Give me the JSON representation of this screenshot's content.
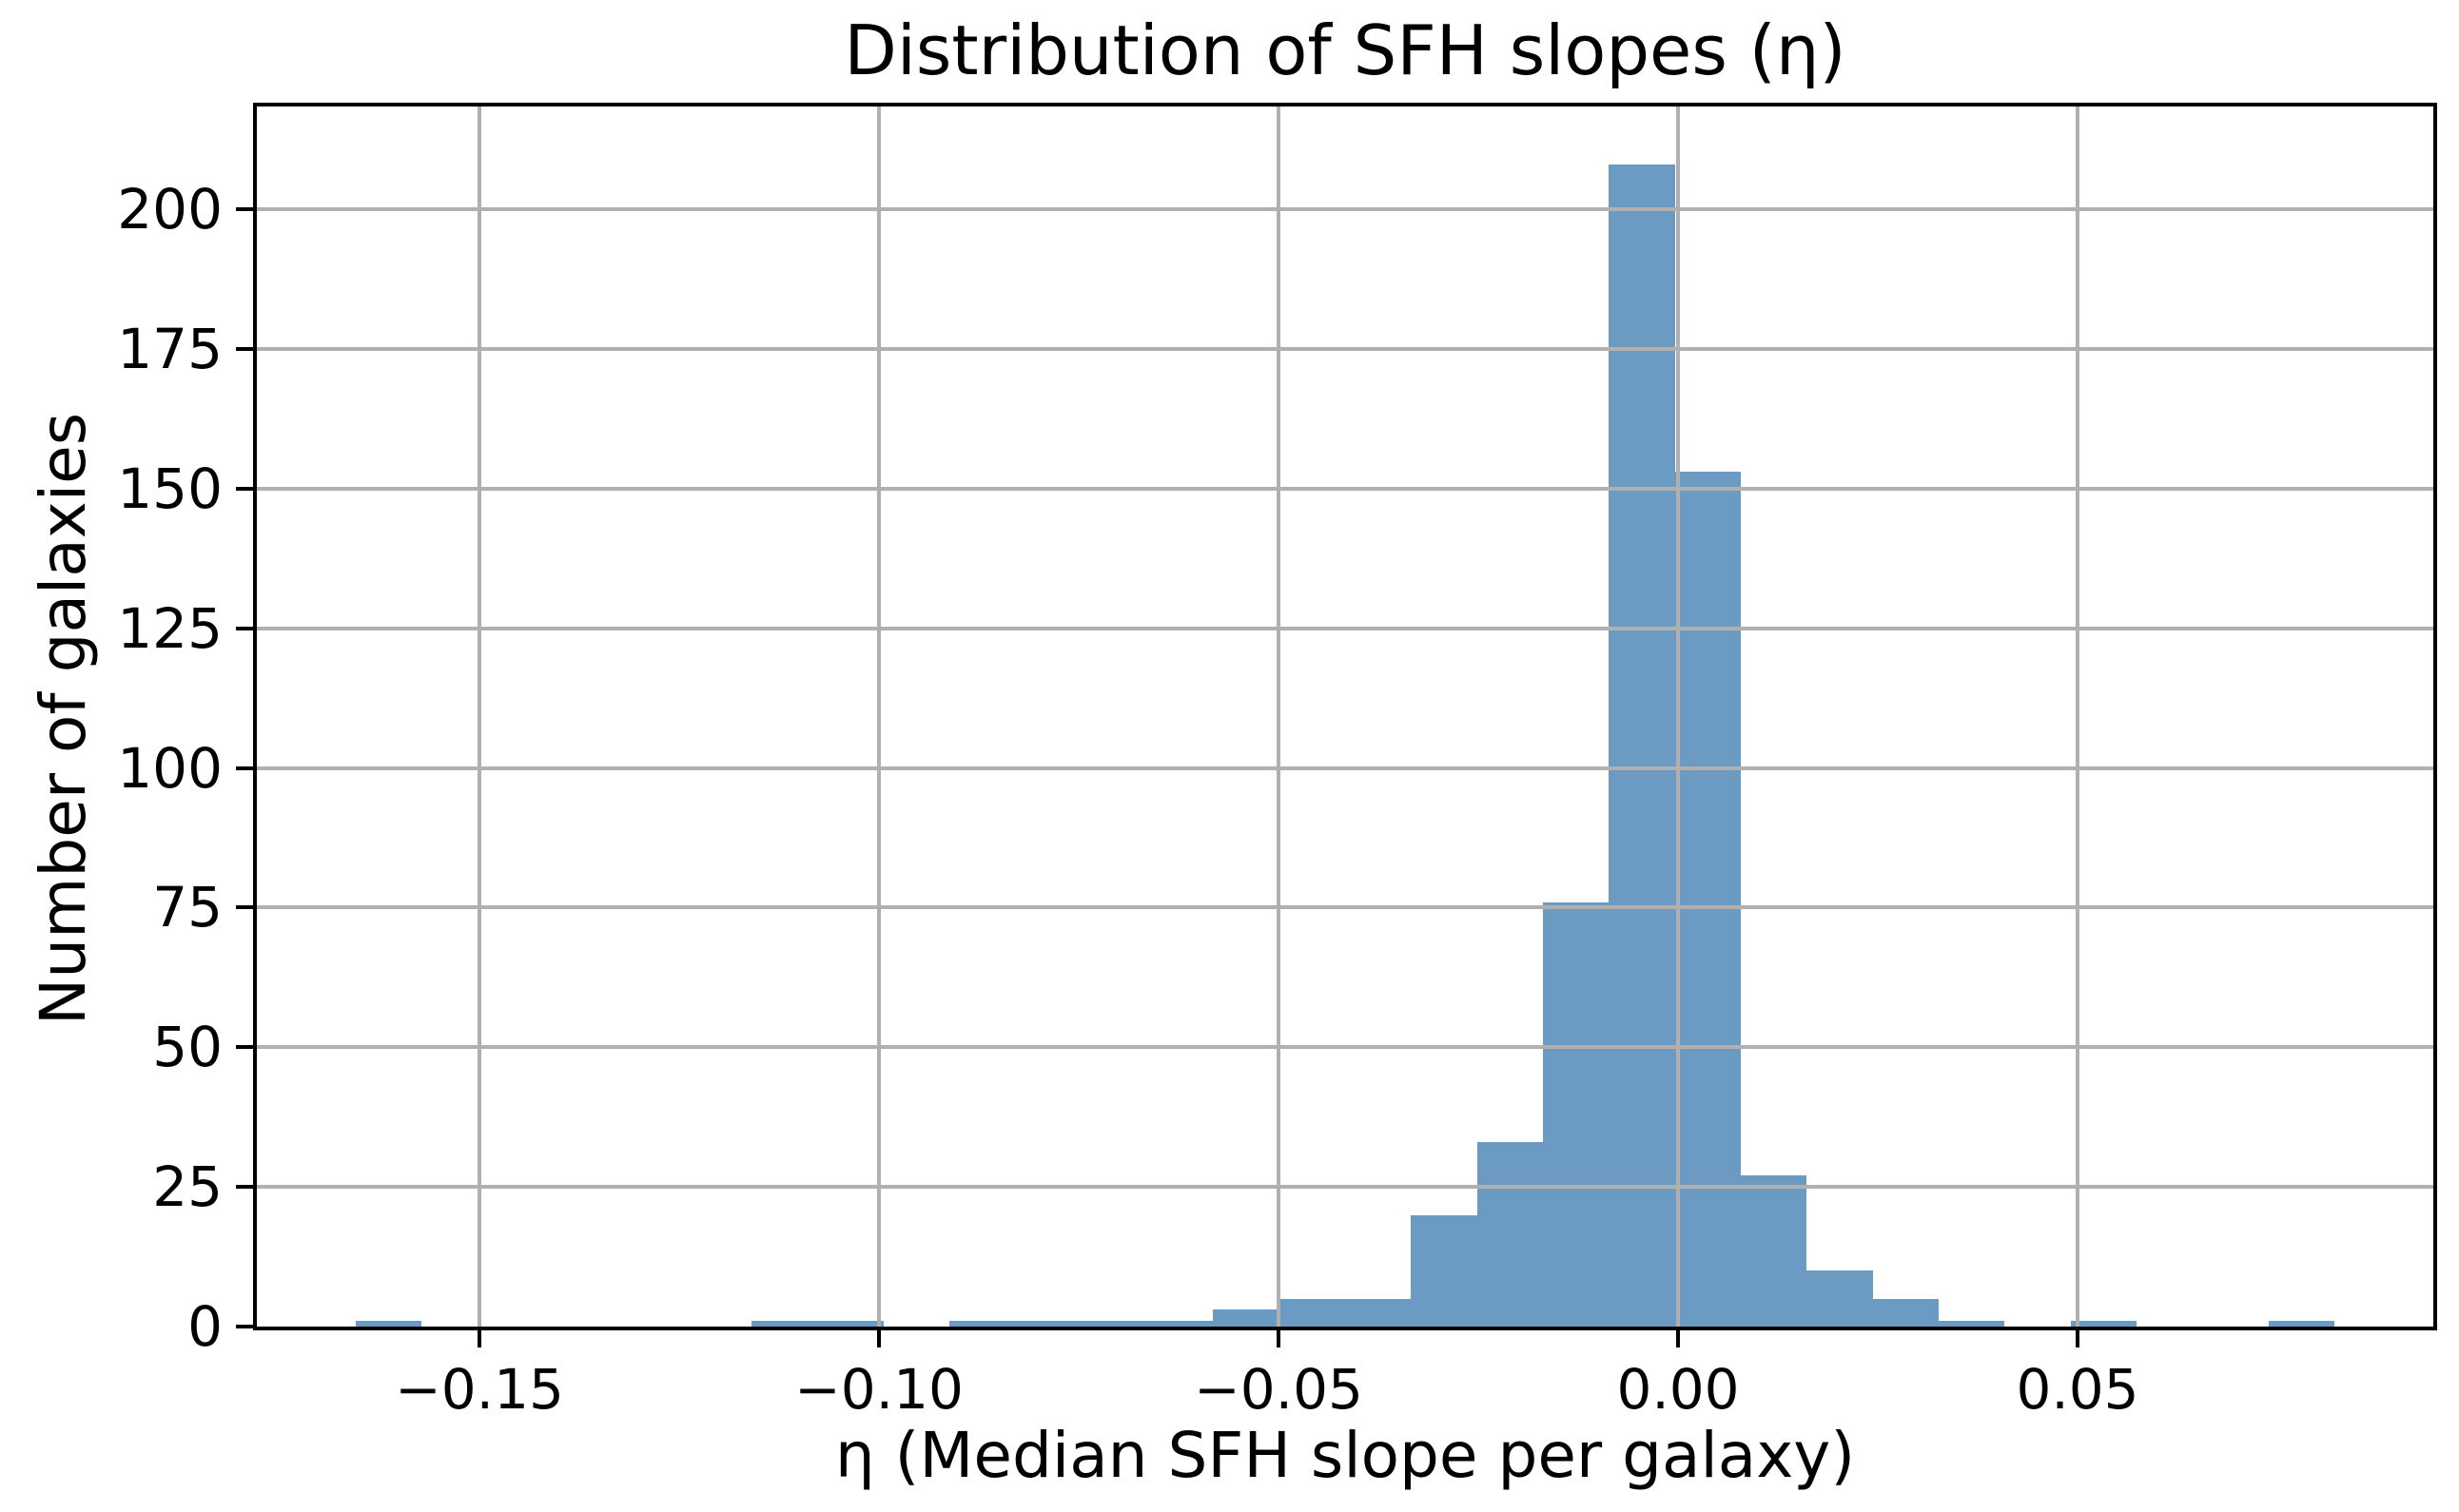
{
  "chart_data": {
    "type": "histogram",
    "title": "Distribution of SFH slopes (η)",
    "xlabel": "η (Median SFH slope per galaxy)",
    "ylabel": "Number of galaxies",
    "bin_start": -0.16548,
    "bin_width": 0.0082539,
    "counts": [
      1,
      0,
      0,
      0,
      0,
      0,
      1,
      1,
      0,
      1,
      1,
      1,
      1,
      3,
      5,
      5,
      20,
      33,
      76,
      208,
      153,
      27,
      10,
      5,
      1,
      0,
      1,
      0,
      0,
      1
    ],
    "xlim": [
      -0.17786,
      0.09452
    ],
    "ylim": [
      0,
      218.4
    ],
    "grid": true,
    "legend": null,
    "xticks": [
      {
        "value": -0.15,
        "label": "−0.15"
      },
      {
        "value": -0.1,
        "label": "−0.10"
      },
      {
        "value": -0.05,
        "label": "−0.05"
      },
      {
        "value": 0.0,
        "label": "0.00"
      },
      {
        "value": 0.05,
        "label": "0.05"
      }
    ],
    "yticks": [
      {
        "value": 0,
        "label": "0"
      },
      {
        "value": 25,
        "label": "25"
      },
      {
        "value": 50,
        "label": "50"
      },
      {
        "value": 75,
        "label": "75"
      },
      {
        "value": 100,
        "label": "100"
      },
      {
        "value": 125,
        "label": "125"
      },
      {
        "value": 150,
        "label": "150"
      },
      {
        "value": 175,
        "label": "175"
      },
      {
        "value": 200,
        "label": "200"
      }
    ],
    "colors": {
      "bar": "#6b9bc3",
      "grid": "#b0b0b0",
      "spine": "#000000",
      "text": "#000000"
    }
  }
}
